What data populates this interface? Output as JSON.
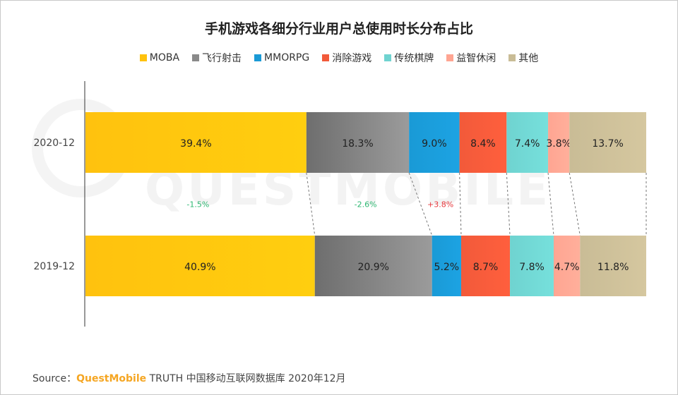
{
  "title": "手机游戏各细分行业用户总使用时长分布占比",
  "colors": {
    "MOBA": "#ffc20e",
    "飞行射击": "#8a8a8a",
    "MMORPG": "#1a9ad6",
    "消除游戏": "#f25a3a",
    "传统棋牌": "#6fd3d0",
    "益智休闲": "#ffa592",
    "其他": "#c9bc96",
    "positive_change": "#e8383d",
    "negative_change": "#2eb872"
  },
  "chart_data": {
    "type": "bar",
    "orientation": "horizontal-stacked-100",
    "title": "手机游戏各细分行业用户总使用时长分布占比",
    "categories": [
      "2020-12",
      "2019-12"
    ],
    "series": [
      {
        "name": "MOBA",
        "values": [
          39.4,
          40.9
        ],
        "labels": [
          "39.4%",
          "40.9%"
        ]
      },
      {
        "name": "飞行射击",
        "values": [
          18.3,
          20.9
        ],
        "labels": [
          "18.3%",
          "20.9%"
        ]
      },
      {
        "name": "MMORPG",
        "values": [
          9.0,
          5.2
        ],
        "labels": [
          "9.0%",
          "5.2%"
        ]
      },
      {
        "name": "消除游戏",
        "values": [
          8.4,
          8.7
        ],
        "labels": [
          "8.4%",
          "8.7%"
        ]
      },
      {
        "name": "传统棋牌",
        "values": [
          7.4,
          7.8
        ],
        "labels": [
          "7.4%",
          "7.8%"
        ]
      },
      {
        "name": "益智休闲",
        "values": [
          3.8,
          4.7
        ],
        "labels": [
          "3.8%",
          "4.7%"
        ]
      },
      {
        "name": "其他",
        "values": [
          13.7,
          11.8
        ],
        "labels": [
          "13.7%",
          "11.8%"
        ]
      }
    ],
    "changes": [
      {
        "series": "MOBA",
        "value": -1.5,
        "label": "-1.5%"
      },
      {
        "series": "飞行射击",
        "value": -2.6,
        "label": "-2.6%"
      },
      {
        "series": "MMORPG",
        "value": 3.8,
        "label": "+3.8%"
      }
    ],
    "legend": "top-center",
    "grid": false
  },
  "watermark": "QUESTMOBILE",
  "source": {
    "prefix": "Source：",
    "brand": "QuestMobile",
    "rest": " TRUTH 中国移动互联网数据库 2020年12月"
  }
}
